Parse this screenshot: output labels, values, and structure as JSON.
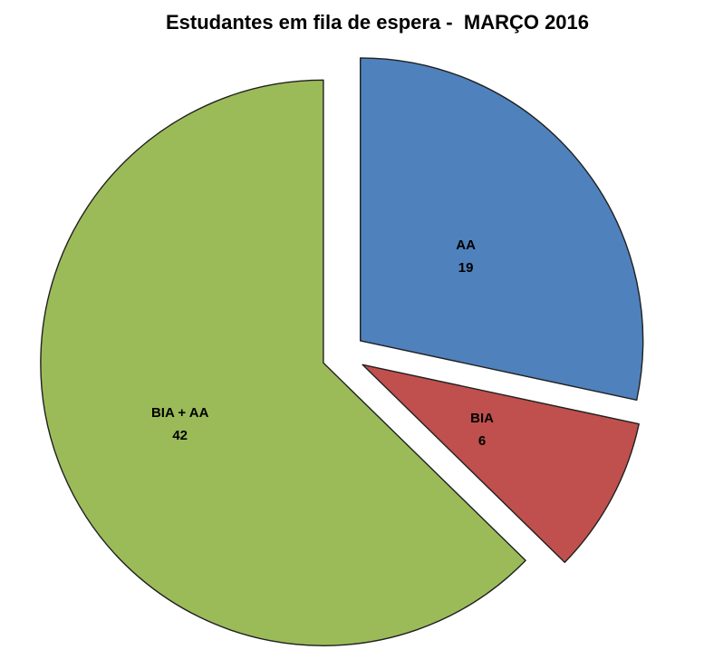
{
  "chart_data": {
    "type": "pie",
    "title": "Estudantes em fila de espera -  MARÇO 2016",
    "categories": [
      "AA",
      "BIA",
      "BIA + AA"
    ],
    "values": [
      19,
      6,
      42
    ],
    "total": 67,
    "slices": [
      {
        "label": "AA",
        "value": 19,
        "color": "#4f81bd"
      },
      {
        "label": "BIA",
        "value": 6,
        "color": "#c0504d"
      },
      {
        "label": "BIA + AA",
        "value": 42,
        "color": "#9bbb59"
      }
    ],
    "start_angle_deg": 0,
    "direction": "clockwise",
    "exploded": true,
    "legend": "none",
    "data_labels": "category name and value inside each slice",
    "border_color": "#202020",
    "background": "#ffffff"
  }
}
